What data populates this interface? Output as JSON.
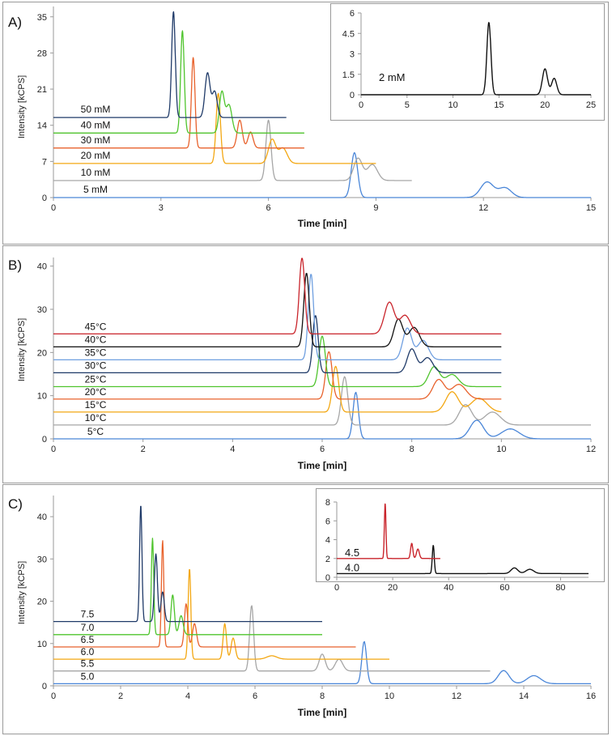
{
  "chart_data": [
    {
      "type": "line",
      "panel_label": "A)",
      "xlabel": "Time [min]",
      "ylabel": "Intensity [kCPS]",
      "xlim": [
        0,
        15
      ],
      "ylim": [
        0,
        37
      ],
      "xticks": [
        0,
        3,
        6,
        9,
        12,
        15
      ],
      "yticks": [
        0,
        7,
        14,
        21,
        28,
        35
      ],
      "series": [
        {
          "name": "5 mM",
          "color": "#4a86d8",
          "baseline": 0,
          "end": 15,
          "peaks": [
            [
              8.4,
              8.7,
              0.09
            ],
            [
              12.1,
              3.0,
              0.18
            ],
            [
              12.6,
              1.9,
              0.18
            ]
          ]
        },
        {
          "name": "10 mM",
          "color": "#a6a6a6",
          "baseline": 3.3,
          "end": 10,
          "peaks": [
            [
              6.0,
              11.7,
              0.07
            ],
            [
              8.5,
              4.3,
              0.12
            ],
            [
              8.9,
              3.1,
              0.14
            ]
          ]
        },
        {
          "name": "20 mM",
          "color": "#f3a712",
          "baseline": 6.6,
          "end": 9,
          "peaks": [
            [
              4.6,
              13.6,
              0.06
            ],
            [
              6.1,
              4.6,
              0.1
            ],
            [
              6.4,
              3.0,
              0.12
            ]
          ]
        },
        {
          "name": "30 mM",
          "color": "#e8622c",
          "baseline": 9.6,
          "end": 7,
          "peaks": [
            [
              3.9,
              17.5,
              0.05
            ],
            [
              5.2,
              5.4,
              0.07
            ],
            [
              5.5,
              3.1,
              0.07
            ]
          ]
        },
        {
          "name": "40 mM",
          "color": "#4fc42d",
          "baseline": 12.5,
          "end": 7,
          "peaks": [
            [
              3.6,
              19.8,
              0.05
            ],
            [
              4.7,
              7.9,
              0.07
            ],
            [
              4.9,
              5.4,
              0.08
            ]
          ]
        },
        {
          "name": "50 mM",
          "color": "#1f3a68",
          "baseline": 15.5,
          "end": 6.5,
          "peaks": [
            [
              3.35,
              20.5,
              0.05
            ],
            [
              4.3,
              8.6,
              0.07
            ],
            [
              4.5,
              5.0,
              0.07
            ]
          ]
        }
      ],
      "inset": {
        "xlim": [
          0,
          25
        ],
        "ylim": [
          0,
          6
        ],
        "xticks": [
          0,
          5,
          10,
          15,
          20,
          25
        ],
        "yticks": [
          0,
          1.5,
          3,
          4.5,
          6
        ],
        "yticklabels": [
          "0",
          "1.5",
          "3",
          "4.5",
          "6"
        ],
        "series": [
          {
            "name": "2 mM",
            "color": "#111111",
            "baseline": 0,
            "end": 25,
            "peaks": [
              [
                13.9,
                5.3,
                0.22
              ],
              [
                20.0,
                1.9,
                0.28
              ],
              [
                21.0,
                1.2,
                0.28
              ]
            ]
          }
        ]
      }
    },
    {
      "type": "line",
      "panel_label": "B)",
      "xlabel": "Time [min]",
      "ylabel": "Intensity [kCPS]",
      "xlim": [
        0,
        12
      ],
      "ylim": [
        0,
        42
      ],
      "xticks": [
        0,
        2,
        4,
        6,
        8,
        10,
        12
      ],
      "yticks": [
        0,
        10,
        20,
        30,
        40
      ],
      "series": [
        {
          "name": "5°C",
          "color": "#4a86d8",
          "baseline": 0,
          "end": 12,
          "peaks": [
            [
              6.75,
              10.8,
              0.06
            ],
            [
              9.45,
              4.3,
              0.15
            ],
            [
              10.2,
              2.3,
              0.2
            ]
          ]
        },
        {
          "name": "10°C",
          "color": "#a6a6a6",
          "baseline": 3.2,
          "end": 12,
          "peaks": [
            [
              6.5,
              11.2,
              0.07
            ],
            [
              9.2,
              4.7,
              0.14
            ],
            [
              9.8,
              3.0,
              0.18
            ]
          ]
        },
        {
          "name": "15°C",
          "color": "#f3a712",
          "baseline": 6.2,
          "end": 10,
          "peaks": [
            [
              6.3,
              10.6,
              0.07
            ],
            [
              8.9,
              4.7,
              0.14
            ],
            [
              9.5,
              3.2,
              0.18
            ]
          ]
        },
        {
          "name": "20°C",
          "color": "#e8622c",
          "baseline": 9.2,
          "end": 10,
          "peaks": [
            [
              6.15,
              11.0,
              0.07
            ],
            [
              8.6,
              4.5,
              0.13
            ],
            [
              9.05,
              3.4,
              0.16
            ]
          ]
        },
        {
          "name": "25°C",
          "color": "#4fc42d",
          "baseline": 12.1,
          "end": 10,
          "peaks": [
            [
              6.0,
              11.7,
              0.07
            ],
            [
              8.5,
              4.6,
              0.12
            ],
            [
              8.9,
              2.8,
              0.14
            ]
          ]
        },
        {
          "name": "30°C",
          "color": "#1f3a68",
          "baseline": 15.3,
          "end": 10,
          "peaks": [
            [
              5.85,
              13.3,
              0.06
            ],
            [
              8.0,
              5.5,
              0.1
            ],
            [
              8.35,
              3.5,
              0.12
            ]
          ]
        },
        {
          "name": "35°C",
          "color": "#6f9fe0",
          "baseline": 18.3,
          "end": 10,
          "peaks": [
            [
              5.75,
              19.9,
              0.06
            ],
            [
              7.9,
              7.3,
              0.1
            ],
            [
              8.25,
              4.5,
              0.12
            ]
          ]
        },
        {
          "name": "40°C",
          "color": "#111111",
          "baseline": 21.3,
          "end": 10,
          "peaks": [
            [
              5.65,
              17.1,
              0.06
            ],
            [
              7.7,
              6.4,
              0.1
            ],
            [
              8.05,
              4.5,
              0.12
            ]
          ]
        },
        {
          "name": "45°C",
          "color": "#c9242b",
          "baseline": 24.3,
          "end": 10,
          "peaks": [
            [
              5.55,
              17.6,
              0.06
            ],
            [
              7.5,
              7.3,
              0.11
            ],
            [
              7.85,
              4.3,
              0.12
            ]
          ]
        }
      ]
    },
    {
      "type": "line",
      "panel_label": "C)",
      "xlabel": "Time [min]",
      "ylabel": "Intensity [kCPS]",
      "xlim": [
        0,
        16
      ],
      "ylim": [
        0,
        45
      ],
      "xticks": [
        0,
        2,
        4,
        6,
        8,
        10,
        12,
        14,
        16
      ],
      "yticks": [
        0,
        10,
        20,
        30,
        40
      ],
      "series": [
        {
          "name": "5.0",
          "color": "#4a86d8",
          "baseline": 0.5,
          "end": 16,
          "peaks": [
            [
              9.25,
              10.0,
              0.07
            ],
            [
              13.4,
              3.1,
              0.16
            ],
            [
              14.3,
              1.9,
              0.2
            ]
          ]
        },
        {
          "name": "5.5",
          "color": "#a6a6a6",
          "baseline": 3.5,
          "end": 13,
          "peaks": [
            [
              5.9,
              15.5,
              0.06
            ],
            [
              8.0,
              4.0,
              0.09
            ],
            [
              8.5,
              2.8,
              0.11
            ]
          ]
        },
        {
          "name": "6.0",
          "color": "#f3a712",
          "baseline": 6.3,
          "end": 10,
          "peaks": [
            [
              4.05,
              21.5,
              0.04
            ],
            [
              5.1,
              8.4,
              0.05
            ],
            [
              5.35,
              5.0,
              0.06
            ],
            [
              6.5,
              0.8,
              0.15
            ]
          ]
        },
        {
          "name": "6.5",
          "color": "#e8622c",
          "baseline": 9.2,
          "end": 9,
          "peaks": [
            [
              3.25,
              25.2,
              0.035
            ],
            [
              3.95,
              10.2,
              0.05
            ],
            [
              4.2,
              5.5,
              0.06
            ]
          ]
        },
        {
          "name": "7.0",
          "color": "#4fc42d",
          "baseline": 12.1,
          "end": 8,
          "peaks": [
            [
              2.95,
              22.8,
              0.035
            ],
            [
              3.55,
              9.4,
              0.05
            ],
            [
              3.8,
              4.5,
              0.06
            ]
          ]
        },
        {
          "name": "7.5",
          "color": "#1f3a68",
          "baseline": 15.2,
          "end": 8,
          "peaks": [
            [
              2.6,
              27.6,
              0.035
            ],
            [
              3.05,
              16.0,
              0.045
            ],
            [
              3.25,
              7.0,
              0.05
            ]
          ]
        }
      ],
      "inset": {
        "xlim": [
          0,
          90
        ],
        "ylim": [
          0,
          8
        ],
        "xticks": [
          0,
          20,
          40,
          60,
          80
        ],
        "yticks": [
          0,
          2,
          4,
          6,
          8
        ],
        "yticklabels": [
          "0",
          "2",
          "4",
          "6",
          "8"
        ],
        "series": [
          {
            "name": "4.0",
            "color": "#111111",
            "baseline": 0.4,
            "end": 90,
            "peaks": [
              [
                34.5,
                3.0,
                0.35
              ],
              [
                63.5,
                0.6,
                1.2
              ],
              [
                69.0,
                0.45,
                1.4
              ]
            ]
          },
          {
            "name": "4.5",
            "color": "#c9242b",
            "baseline": 2.0,
            "end": 37,
            "peaks": [
              [
                17.3,
                5.8,
                0.28
              ],
              [
                26.8,
                1.6,
                0.4
              ],
              [
                29.0,
                1.0,
                0.5
              ]
            ]
          }
        ]
      }
    }
  ]
}
